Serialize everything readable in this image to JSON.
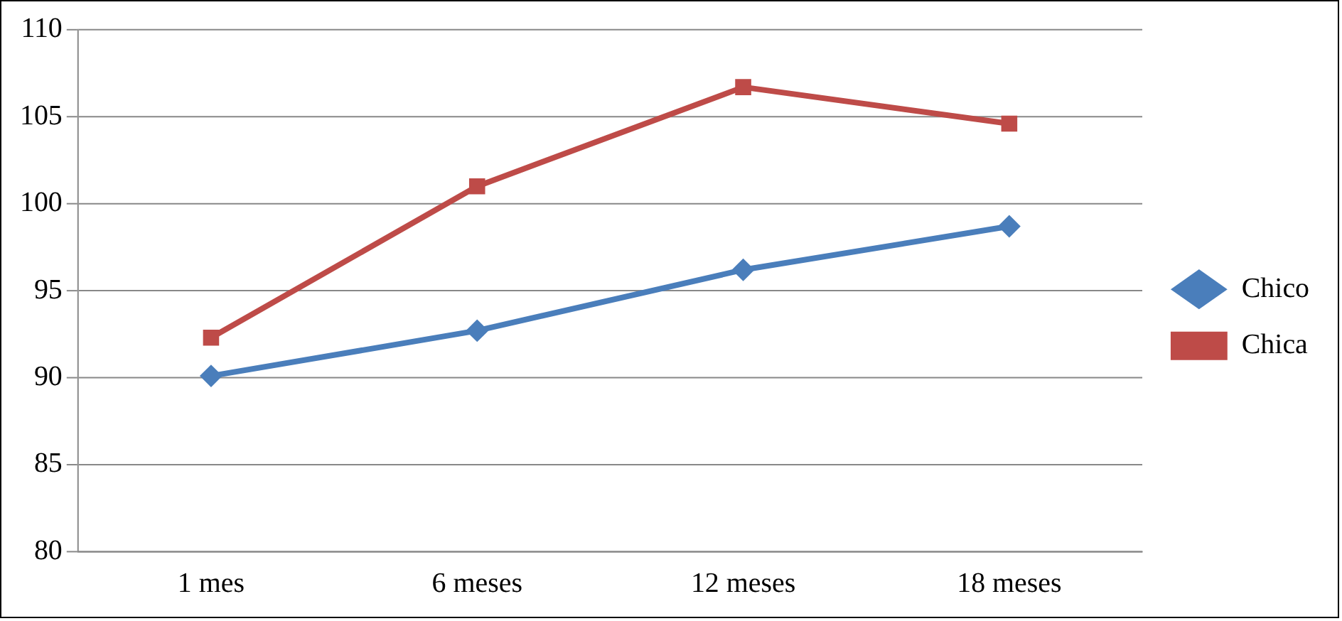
{
  "chart_data": {
    "type": "line",
    "categories": [
      "1 mes",
      "6 meses",
      "12 meses",
      "18 meses"
    ],
    "series": [
      {
        "name": "Chico",
        "color": "#4a7ebb",
        "marker": "diamond",
        "values": [
          90.1,
          92.7,
          96.2,
          98.7
        ]
      },
      {
        "name": "Chica",
        "color": "#be4b48",
        "marker": "square",
        "values": [
          92.3,
          101.0,
          106.7,
          104.6
        ]
      }
    ],
    "ylim": [
      80,
      110
    ],
    "yticks": [
      80,
      85,
      90,
      95,
      100,
      105,
      110
    ],
    "grid": "y",
    "legend": "right",
    "line_style": "solid"
  }
}
